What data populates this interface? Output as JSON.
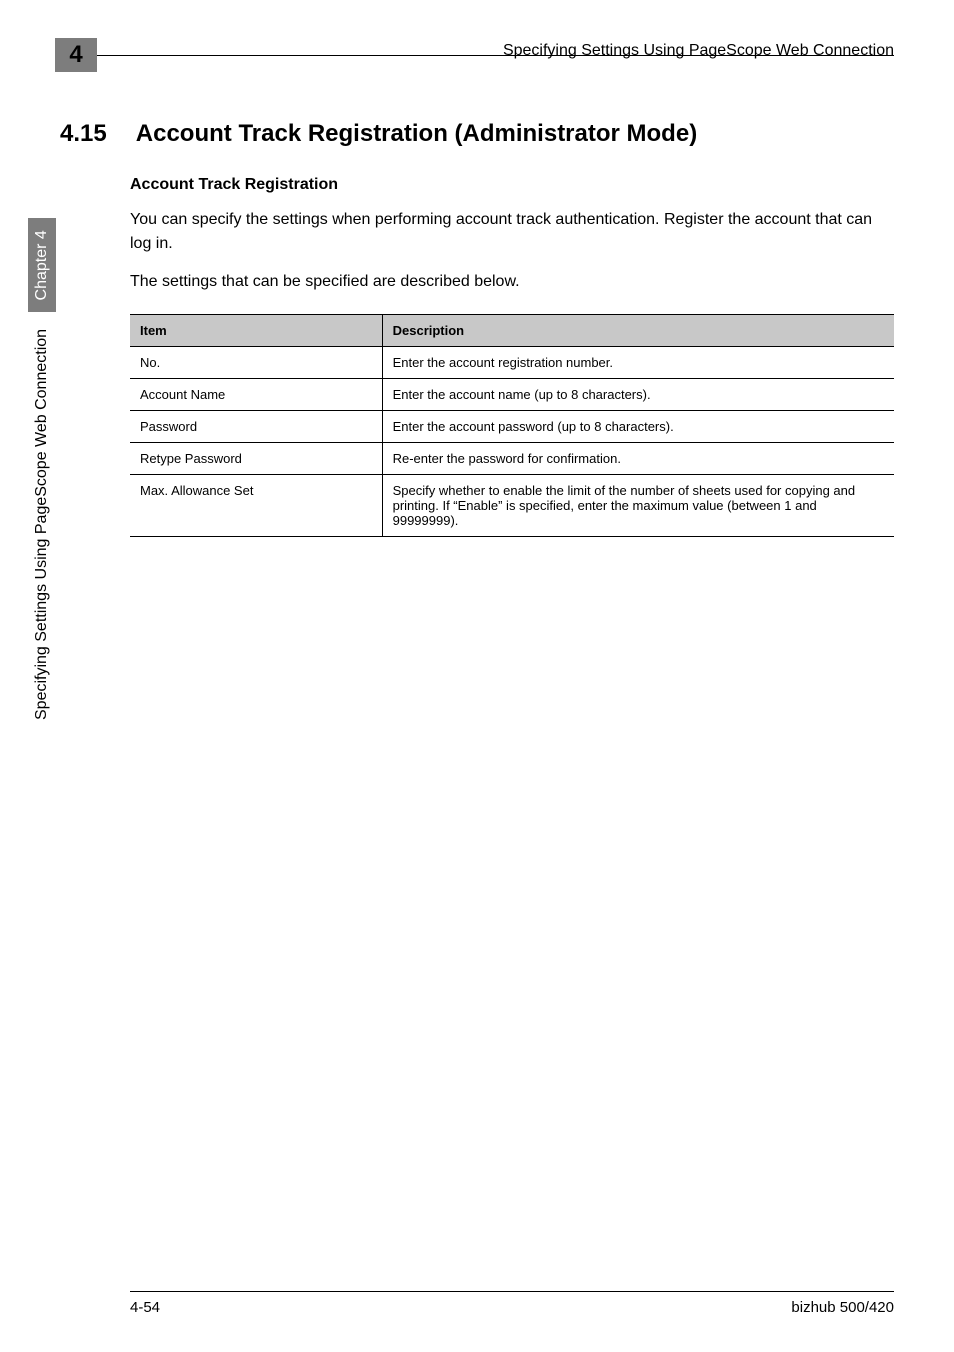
{
  "header": {
    "chapter_number": "4",
    "running_title": "Specifying Settings Using PageScope Web Connection"
  },
  "section": {
    "number": "4.15",
    "title": "Account Track Registration (Administrator Mode)"
  },
  "subsection": {
    "title": "Account Track Registration"
  },
  "paragraphs": {
    "p1": "You can specify the settings when performing account track authentication. Register the account that can log in.",
    "p2": "The settings that can be specified are described below."
  },
  "table": {
    "columns": [
      "Item",
      "Description"
    ],
    "col_widths_pct": [
      33,
      67
    ],
    "header_bg": "#c8c8c8",
    "border_color": "#000000",
    "font_size_pt": 10,
    "rows": [
      {
        "item": "No.",
        "desc": "Enter the account registration number."
      },
      {
        "item": "Account Name",
        "desc": "Enter the account name (up to 8 characters)."
      },
      {
        "item": "Password",
        "desc": "Enter the account password (up to 8 characters)."
      },
      {
        "item": "Retype Password",
        "desc": "Re-enter the password for confirmation."
      },
      {
        "item": "Max. Allowance Set",
        "desc": "Specify whether to enable the limit of the number of sheets used for copying and printing. If “Enable” is specified, enter the maximum value (between 1 and 99999999)."
      }
    ]
  },
  "side": {
    "text": "Specifying Settings Using PageScope Web Connection",
    "chapter": "Chapter 4"
  },
  "footer": {
    "left": "4-54",
    "right": "bizhub 500/420"
  },
  "colors": {
    "tab_bg": "#7d7d7d",
    "tab_fg": "#000000",
    "chapter_bg": "#7d7d7d",
    "chapter_fg": "#ffffff",
    "page_bg": "#ffffff",
    "text": "#000000"
  }
}
